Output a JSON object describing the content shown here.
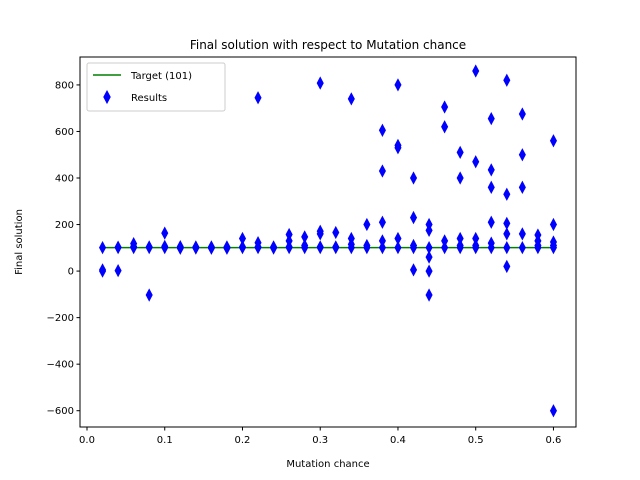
{
  "chart_data": {
    "type": "scatter",
    "title": "Final solution with respect to Mutation chance",
    "xlabel": "Mutation chance",
    "ylabel": "Final solution",
    "xlim": [
      -0.009,
      0.629
    ],
    "ylim": [
      -670,
      920
    ],
    "xticks": [
      0.0,
      0.1,
      0.2,
      0.3,
      0.4,
      0.5,
      0.6
    ],
    "xtick_labels": [
      "0.0",
      "0.1",
      "0.2",
      "0.3",
      "0.4",
      "0.5",
      "0.6"
    ],
    "yticks": [
      -600,
      -400,
      -200,
      0,
      200,
      400,
      600,
      800
    ],
    "ytick_labels": [
      "−600",
      "−400",
      "−200",
      "0",
      "200",
      "400",
      "600",
      "800"
    ],
    "grid": false,
    "legend_placement": "top-left",
    "colors": {
      "target": "#008000",
      "results": "#0000ff"
    },
    "series": [
      {
        "name": "Target (101)",
        "kind": "line",
        "x": [
          0.02,
          0.6
        ],
        "y": [
          101,
          101
        ]
      },
      {
        "name": "Results",
        "kind": "scatter",
        "marker": "thin-diamond",
        "points": [
          [
            0.02,
            101
          ],
          [
            0.02,
            5
          ],
          [
            0.02,
            0
          ],
          [
            0.04,
            101
          ],
          [
            0.04,
            103
          ],
          [
            0.04,
            2
          ],
          [
            0.06,
            101
          ],
          [
            0.06,
            118
          ],
          [
            0.06,
            105
          ],
          [
            0.08,
            101
          ],
          [
            0.08,
            104
          ],
          [
            0.08,
            -103
          ],
          [
            0.1,
            101
          ],
          [
            0.1,
            163
          ],
          [
            0.1,
            106
          ],
          [
            0.12,
            101
          ],
          [
            0.12,
            105
          ],
          [
            0.12,
            98
          ],
          [
            0.14,
            101
          ],
          [
            0.14,
            104
          ],
          [
            0.14,
            99
          ],
          [
            0.16,
            101
          ],
          [
            0.16,
            104
          ],
          [
            0.16,
            98
          ],
          [
            0.18,
            101
          ],
          [
            0.18,
            104
          ],
          [
            0.18,
            98
          ],
          [
            0.2,
            101
          ],
          [
            0.2,
            140
          ],
          [
            0.2,
            104
          ],
          [
            0.22,
            101
          ],
          [
            0.22,
            745
          ],
          [
            0.22,
            122
          ],
          [
            0.22,
            104
          ],
          [
            0.24,
            101
          ],
          [
            0.24,
            104
          ],
          [
            0.24,
            99
          ],
          [
            0.26,
            101
          ],
          [
            0.26,
            157
          ],
          [
            0.26,
            130
          ],
          [
            0.26,
            104
          ],
          [
            0.28,
            101
          ],
          [
            0.28,
            147
          ],
          [
            0.28,
            110
          ],
          [
            0.3,
            101
          ],
          [
            0.3,
            808
          ],
          [
            0.3,
            171
          ],
          [
            0.3,
            160
          ],
          [
            0.3,
            104
          ],
          [
            0.32,
            101
          ],
          [
            0.32,
            166
          ],
          [
            0.32,
            104
          ],
          [
            0.34,
            101
          ],
          [
            0.34,
            740
          ],
          [
            0.34,
            140
          ],
          [
            0.34,
            115
          ],
          [
            0.36,
            101
          ],
          [
            0.36,
            200
          ],
          [
            0.36,
            110
          ],
          [
            0.38,
            101
          ],
          [
            0.38,
            605
          ],
          [
            0.38,
            430
          ],
          [
            0.38,
            210
          ],
          [
            0.38,
            130
          ],
          [
            0.4,
            101
          ],
          [
            0.4,
            800
          ],
          [
            0.4,
            540
          ],
          [
            0.4,
            530
          ],
          [
            0.4,
            140
          ],
          [
            0.42,
            101
          ],
          [
            0.42,
            400
          ],
          [
            0.42,
            230
          ],
          [
            0.42,
            110
          ],
          [
            0.42,
            5
          ],
          [
            0.44,
            101
          ],
          [
            0.44,
            200
          ],
          [
            0.44,
            175
          ],
          [
            0.44,
            60
          ],
          [
            0.44,
            0
          ],
          [
            0.44,
            -103
          ],
          [
            0.46,
            101
          ],
          [
            0.46,
            705
          ],
          [
            0.46,
            620
          ],
          [
            0.46,
            130
          ],
          [
            0.48,
            101
          ],
          [
            0.48,
            510
          ],
          [
            0.48,
            400
          ],
          [
            0.48,
            140
          ],
          [
            0.48,
            110
          ],
          [
            0.5,
            101
          ],
          [
            0.5,
            860
          ],
          [
            0.5,
            470
          ],
          [
            0.5,
            140
          ],
          [
            0.5,
            110
          ],
          [
            0.52,
            101
          ],
          [
            0.52,
            655
          ],
          [
            0.52,
            435
          ],
          [
            0.52,
            360
          ],
          [
            0.52,
            210
          ],
          [
            0.52,
            120
          ],
          [
            0.54,
            101
          ],
          [
            0.54,
            820
          ],
          [
            0.54,
            330
          ],
          [
            0.54,
            205
          ],
          [
            0.54,
            160
          ],
          [
            0.54,
            20
          ],
          [
            0.56,
            101
          ],
          [
            0.56,
            675
          ],
          [
            0.56,
            500
          ],
          [
            0.56,
            360
          ],
          [
            0.56,
            160
          ],
          [
            0.58,
            101
          ],
          [
            0.58,
            155
          ],
          [
            0.58,
            130
          ],
          [
            0.58,
            110
          ],
          [
            0.6,
            101
          ],
          [
            0.6,
            560
          ],
          [
            0.6,
            200
          ],
          [
            0.6,
            125
          ],
          [
            0.6,
            110
          ],
          [
            0.6,
            -600
          ]
        ]
      }
    ]
  }
}
